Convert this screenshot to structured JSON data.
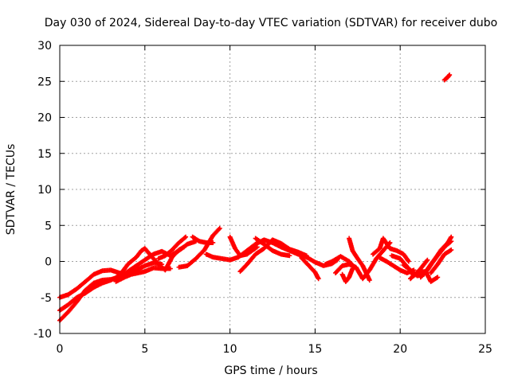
{
  "chart_data": {
    "type": "scatter",
    "title": "Day 030 of 2024, Sidereal Day-to-day VTEC variation (SDTVAR) for receiver dubo",
    "xlabel": "GPS time / hours",
    "ylabel": "SDTVAR / TECUs",
    "xlim": [
      0,
      25
    ],
    "ylim": [
      -10,
      30
    ],
    "xticks": [
      0,
      5,
      10,
      15,
      20,
      25
    ],
    "yticks": [
      -10,
      -5,
      0,
      5,
      10,
      15,
      20,
      25,
      30
    ],
    "grid": true,
    "marker": "+",
    "color": "#ff0000",
    "series": [
      {
        "name": "track-1",
        "points": [
          [
            0.0,
            -5.0
          ],
          [
            0.5,
            -4.6
          ],
          [
            1.0,
            -3.8
          ],
          [
            1.5,
            -2.8
          ],
          [
            2.0,
            -1.8
          ],
          [
            2.5,
            -1.3
          ],
          [
            3.0,
            -1.2
          ],
          [
            3.5,
            -1.6
          ],
          [
            4.0,
            -1.8
          ],
          [
            4.5,
            -1.2
          ],
          [
            5.0,
            -0.6
          ],
          [
            5.5,
            -0.2
          ],
          [
            6.0,
            -0.4
          ]
        ]
      },
      {
        "name": "track-2",
        "points": [
          [
            0.0,
            -8.2
          ],
          [
            0.5,
            -7.0
          ],
          [
            1.0,
            -5.6
          ],
          [
            1.5,
            -4.0
          ],
          [
            2.0,
            -3.0
          ],
          [
            2.5,
            -2.6
          ],
          [
            3.0,
            -2.5
          ],
          [
            3.5,
            -2.2
          ],
          [
            4.0,
            -1.4
          ],
          [
            4.5,
            -0.6
          ],
          [
            5.0,
            0.2
          ],
          [
            5.5,
            1.0
          ],
          [
            6.0,
            1.4
          ],
          [
            6.5,
            0.8
          ],
          [
            7.0,
            1.5
          ],
          [
            7.5,
            2.4
          ],
          [
            8.0,
            2.8
          ]
        ]
      },
      {
        "name": "track-3",
        "points": [
          [
            0.0,
            -6.8
          ],
          [
            0.5,
            -6.0
          ],
          [
            1.0,
            -5.0
          ],
          [
            1.5,
            -4.4
          ],
          [
            2.0,
            -3.6
          ],
          [
            2.5,
            -3.0
          ],
          [
            3.0,
            -2.6
          ],
          [
            3.5,
            -2.0
          ],
          [
            4.0,
            -0.4
          ],
          [
            4.5,
            0.6
          ],
          [
            4.8,
            1.5
          ],
          [
            5.0,
            1.8
          ],
          [
            5.5,
            0.4
          ],
          [
            6.0,
            -0.8
          ],
          [
            6.2,
            -1.2
          ],
          [
            6.6,
            0.6
          ],
          [
            7.0,
            1.6
          ],
          [
            7.3,
            2.0
          ]
        ]
      },
      {
        "name": "track-4",
        "points": [
          [
            3.3,
            -2.8
          ],
          [
            3.8,
            -2.2
          ],
          [
            4.2,
            -1.8
          ],
          [
            4.6,
            -1.6
          ],
          [
            5.0,
            -1.4
          ],
          [
            5.5,
            -0.9
          ],
          [
            6.0,
            -1.0
          ],
          [
            6.5,
            -1.0
          ]
        ]
      },
      {
        "name": "track-5",
        "points": [
          [
            5.8,
            0.4
          ],
          [
            6.2,
            0.8
          ],
          [
            6.6,
            1.6
          ],
          [
            7.0,
            2.6
          ],
          [
            7.4,
            3.4
          ]
        ]
      },
      {
        "name": "track-6",
        "points": [
          [
            7.0,
            -0.8
          ],
          [
            7.5,
            -0.6
          ],
          [
            8.0,
            0.4
          ],
          [
            8.5,
            1.6
          ],
          [
            9.0,
            3.6
          ],
          [
            9.4,
            4.6
          ]
        ]
      },
      {
        "name": "track-7",
        "points": [
          [
            8.6,
            1.0
          ],
          [
            9.0,
            0.6
          ],
          [
            9.5,
            0.4
          ],
          [
            10.0,
            0.2
          ],
          [
            10.5,
            0.6
          ],
          [
            11.0,
            1.5
          ],
          [
            11.5,
            2.4
          ],
          [
            12.0,
            3.0
          ],
          [
            12.5,
            2.6
          ],
          [
            13.0,
            2.0
          ],
          [
            13.5,
            1.5
          ],
          [
            14.0,
            1.0
          ],
          [
            14.5,
            0.6
          ],
          [
            15.0,
            -0.1
          ],
          [
            15.5,
            -0.6
          ],
          [
            16.0,
            -0.3
          ],
          [
            16.3,
            0.2
          ]
        ]
      },
      {
        "name": "track-8",
        "points": [
          [
            7.8,
            3.4
          ],
          [
            8.2,
            2.8
          ],
          [
            8.6,
            2.6
          ],
          [
            9.0,
            2.6
          ]
        ]
      },
      {
        "name": "track-9",
        "points": [
          [
            10.0,
            3.4
          ],
          [
            10.3,
            1.8
          ],
          [
            10.6,
            0.8
          ],
          [
            11.0,
            1.0
          ],
          [
            11.6,
            2.0
          ]
        ]
      },
      {
        "name": "track-10",
        "points": [
          [
            10.6,
            -1.4
          ],
          [
            11.0,
            -0.4
          ],
          [
            11.5,
            1.0
          ],
          [
            12.0,
            1.8
          ],
          [
            12.5,
            3.0
          ],
          [
            13.0,
            2.5
          ],
          [
            13.5,
            1.7
          ],
          [
            14.0,
            1.3
          ],
          [
            14.5,
            0.8
          ]
        ]
      },
      {
        "name": "track-11",
        "points": [
          [
            11.5,
            3.2
          ],
          [
            12.0,
            2.4
          ],
          [
            12.5,
            1.5
          ],
          [
            13.0,
            1.0
          ],
          [
            13.5,
            0.8
          ]
        ]
      },
      {
        "name": "track-12",
        "points": [
          [
            14.2,
            0.5
          ],
          [
            14.6,
            -0.5
          ],
          [
            15.0,
            -1.5
          ],
          [
            15.2,
            -2.4
          ]
        ]
      },
      {
        "name": "track-13",
        "points": [
          [
            15.6,
            -0.4
          ],
          [
            16.0,
            0.0
          ],
          [
            16.5,
            0.7
          ],
          [
            17.0,
            0.0
          ],
          [
            17.3,
            -0.8
          ]
        ]
      },
      {
        "name": "track-14",
        "points": [
          [
            16.2,
            -1.6
          ],
          [
            16.6,
            -0.6
          ],
          [
            17.0,
            -0.4
          ],
          [
            17.4,
            -0.8
          ],
          [
            17.6,
            -1.6
          ],
          [
            17.8,
            -2.4
          ],
          [
            18.2,
            -1.2
          ],
          [
            18.6,
            0.4
          ],
          [
            19.0,
            1.5
          ],
          [
            19.4,
            2.6
          ]
        ]
      },
      {
        "name": "track-15",
        "points": [
          [
            17.0,
            3.2
          ],
          [
            17.2,
            1.5
          ],
          [
            17.5,
            0.4
          ],
          [
            17.8,
            -0.6
          ],
          [
            18.0,
            -1.6
          ],
          [
            18.2,
            -2.6
          ]
        ]
      },
      {
        "name": "track-16",
        "points": [
          [
            16.6,
            -1.8
          ],
          [
            16.8,
            -2.8
          ],
          [
            17.0,
            -2.2
          ],
          [
            17.2,
            -1.0
          ]
        ]
      },
      {
        "name": "track-17",
        "points": [
          [
            18.4,
            1.0
          ],
          [
            18.8,
            1.8
          ],
          [
            19.0,
            3.2
          ],
          [
            19.4,
            1.8
          ],
          [
            19.8,
            1.5
          ],
          [
            20.2,
            1.0
          ],
          [
            20.5,
            0.0
          ]
        ]
      },
      {
        "name": "track-18",
        "points": [
          [
            18.8,
            0.5
          ],
          [
            19.2,
            0.0
          ],
          [
            19.6,
            -0.6
          ],
          [
            20.0,
            -1.2
          ],
          [
            20.4,
            -1.6
          ],
          [
            20.8,
            -1.2
          ]
        ]
      },
      {
        "name": "track-19",
        "points": [
          [
            19.5,
            0.8
          ],
          [
            20.0,
            0.4
          ],
          [
            20.5,
            -1.0
          ],
          [
            20.8,
            -2.0
          ],
          [
            21.2,
            -1.0
          ],
          [
            21.6,
            0.2
          ]
        ]
      },
      {
        "name": "track-20",
        "points": [
          [
            20.6,
            -2.4
          ],
          [
            21.0,
            -1.5
          ],
          [
            21.5,
            -1.4
          ],
          [
            21.8,
            -2.8
          ],
          [
            22.2,
            -2.2
          ]
        ]
      },
      {
        "name": "track-21",
        "points": [
          [
            20.2,
            -0.5
          ],
          [
            20.6,
            -1.2
          ],
          [
            21.0,
            -2.0
          ],
          [
            21.4,
            -1.8
          ],
          [
            21.8,
            -0.4
          ],
          [
            22.2,
            0.8
          ],
          [
            22.6,
            2.0
          ],
          [
            23.0,
            2.8
          ]
        ]
      },
      {
        "name": "track-22",
        "points": [
          [
            21.2,
            -2.2
          ],
          [
            21.6,
            -1.2
          ],
          [
            22.0,
            0.2
          ],
          [
            22.4,
            1.6
          ],
          [
            22.8,
            2.6
          ],
          [
            23.0,
            3.4
          ]
        ]
      },
      {
        "name": "track-23",
        "points": [
          [
            21.8,
            -1.6
          ],
          [
            22.2,
            -0.4
          ],
          [
            22.6,
            1.0
          ],
          [
            23.0,
            1.6
          ]
        ]
      },
      {
        "name": "track-24",
        "points": [
          [
            22.6,
            25.2
          ],
          [
            22.7,
            25.4
          ],
          [
            22.8,
            25.6
          ],
          [
            22.9,
            25.9
          ]
        ]
      }
    ]
  }
}
